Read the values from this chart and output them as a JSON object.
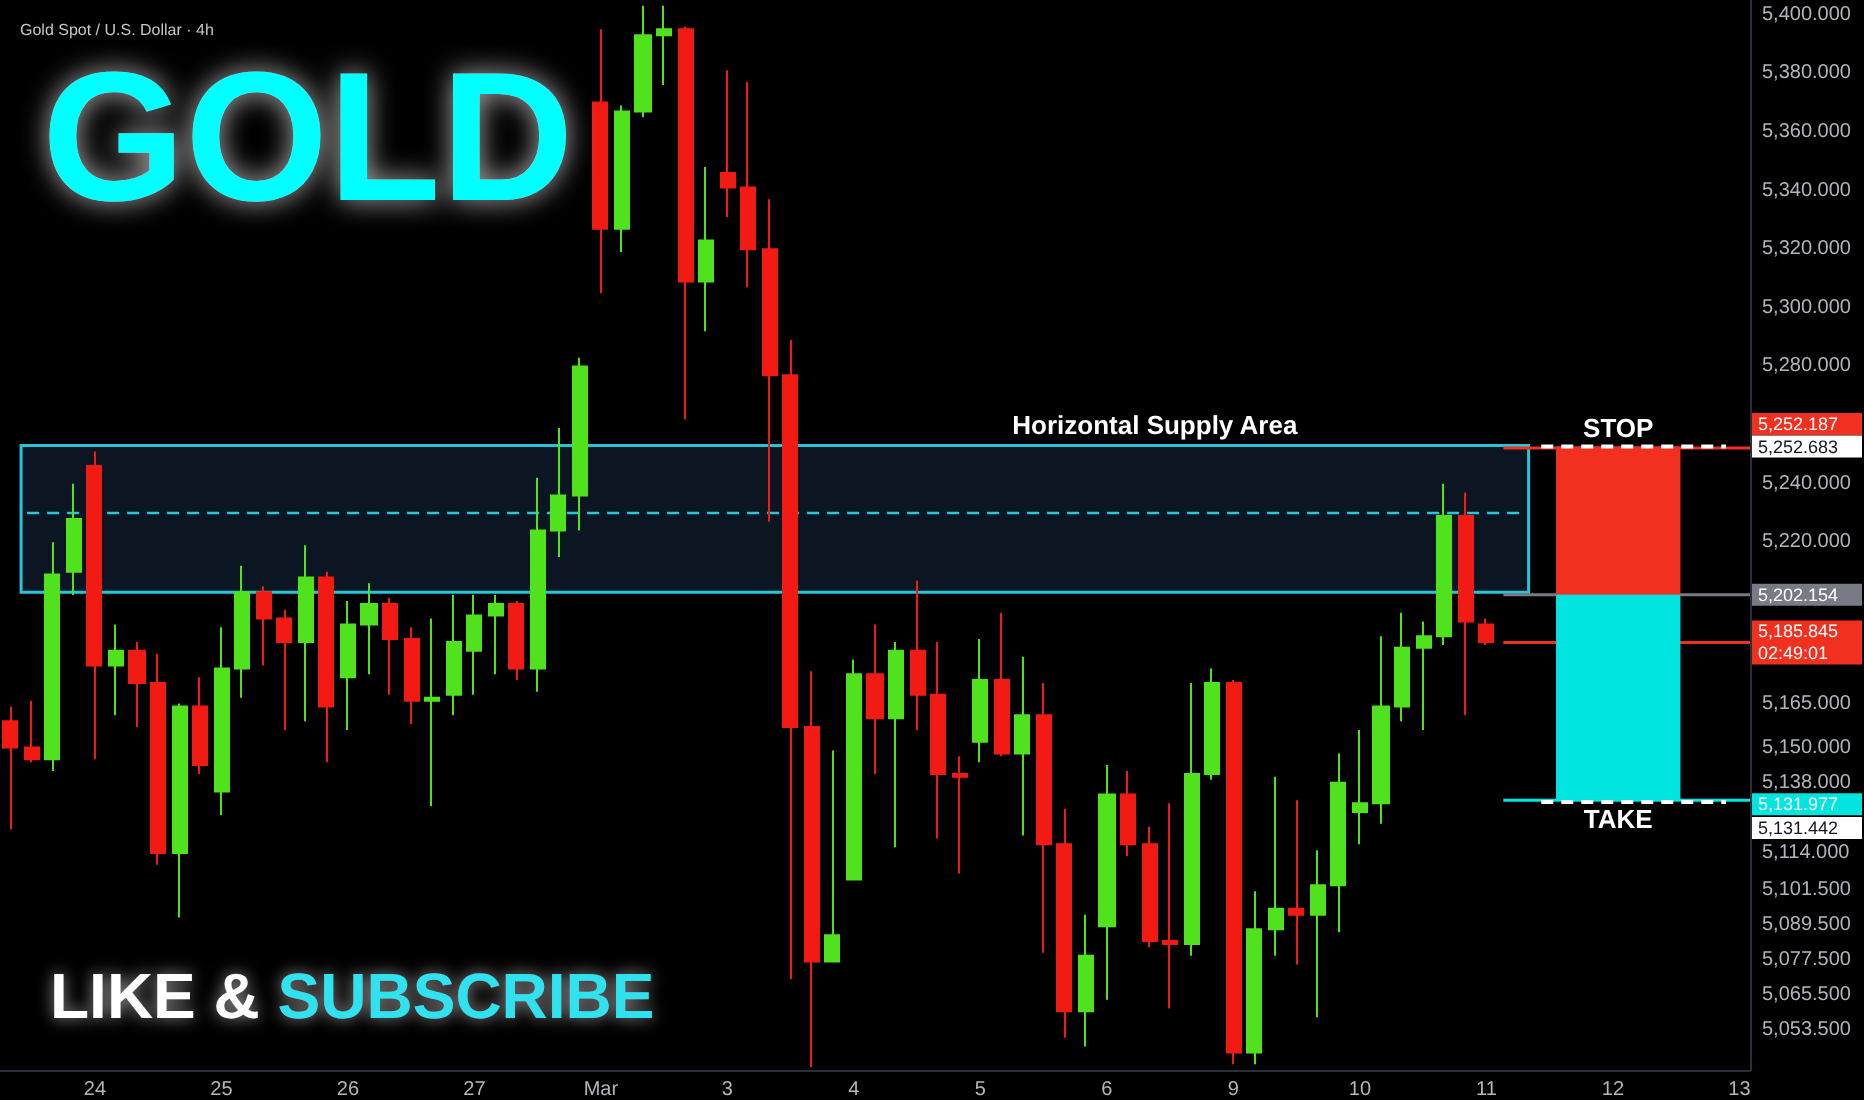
{
  "chart_data": {
    "type": "candlestick",
    "title": "GOLD",
    "subtitle": "Gold Spot / U.S. Dollar · 4h",
    "categories": [
      null,
      null,
      null,
      null,
      "24",
      null,
      null,
      null,
      null,
      null,
      "25",
      null,
      null,
      null,
      null,
      null,
      "26",
      null,
      null,
      null,
      null,
      null,
      "27",
      null,
      null,
      null,
      null,
      null,
      "Mar",
      null,
      null,
      null,
      null,
      null,
      "3",
      null,
      null,
      null,
      null,
      null,
      "4",
      null,
      null,
      null,
      null,
      null,
      "5",
      null,
      null,
      null,
      null,
      null,
      "6",
      null,
      null,
      null,
      null,
      null,
      "9",
      null,
      null,
      null,
      null,
      null,
      "10",
      null,
      null,
      null,
      null,
      null,
      "11",
      null,
      null,
      null,
      null,
      null,
      "12",
      null,
      null,
      null,
      null,
      null,
      "13"
    ],
    "ohlc": [
      [
        5159,
        5164,
        5122,
        5150
      ],
      [
        5150,
        5166,
        5145,
        5146
      ],
      [
        5146,
        5220,
        5142,
        5209
      ],
      [
        5210,
        5240,
        5202,
        5228
      ],
      [
        5246,
        5251,
        5146,
        5178
      ],
      [
        5178,
        5192,
        5161,
        5183
      ],
      [
        5183,
        5186,
        5157,
        5172
      ],
      [
        5172,
        5182,
        5110,
        5114
      ],
      [
        5114,
        5165,
        5092,
        5164
      ],
      [
        5164,
        5174,
        5141,
        5144
      ],
      [
        5135,
        5191,
        5127,
        5177
      ],
      [
        5177,
        5212,
        5167,
        5203
      ],
      [
        5203,
        5205,
        5178,
        5194
      ],
      [
        5194,
        5197,
        5156,
        5186
      ],
      [
        5186,
        5219,
        5159,
        5208
      ],
      [
        5208,
        5210,
        5145,
        5164
      ],
      [
        5174,
        5200,
        5156,
        5192
      ],
      [
        5192,
        5206,
        5175,
        5199
      ],
      [
        5199,
        5201,
        5168,
        5187
      ],
      [
        5187,
        5191,
        5158,
        5166
      ],
      [
        5166,
        5194,
        5130,
        5167
      ],
      [
        5168,
        5202,
        5161,
        5186
      ],
      [
        5183,
        5202,
        5168,
        5195
      ],
      [
        5195,
        5202,
        5175,
        5199
      ],
      [
        5199,
        5200,
        5173,
        5177
      ],
      [
        5177,
        5242,
        5169,
        5224
      ],
      [
        5224,
        5259,
        5215,
        5236
      ],
      [
        5236,
        5283,
        5224,
        5280
      ],
      [
        5370,
        5395,
        5305,
        5327
      ],
      [
        5327,
        5369,
        5319,
        5367
      ],
      [
        5367,
        5403,
        5365,
        5393
      ],
      [
        5393,
        5403,
        5376,
        5395
      ],
      [
        5395,
        5396,
        5262,
        5309
      ],
      [
        5309,
        5348,
        5292,
        5323
      ],
      [
        5346,
        5381,
        5331,
        5341
      ],
      [
        5341,
        5377,
        5307,
        5320
      ],
      [
        5320,
        5337,
        5227,
        5277
      ],
      [
        5277,
        5289,
        5071,
        5157
      ],
      [
        5157,
        5176,
        5041,
        5077
      ],
      [
        5077,
        5149,
        5077,
        5086
      ],
      [
        5105,
        5180,
        5105,
        5175
      ],
      [
        5175,
        5192,
        5141,
        5160
      ],
      [
        5160,
        5186,
        5116,
        5183
      ],
      [
        5183,
        5207,
        5156,
        5168
      ],
      [
        5168,
        5186,
        5119,
        5141
      ],
      [
        5141,
        5147,
        5107,
        5140
      ],
      [
        5152,
        5187,
        5145,
        5173
      ],
      [
        5173,
        5196,
        5147,
        5148
      ],
      [
        5148,
        5181,
        5120,
        5161
      ],
      [
        5161,
        5172,
        5080,
        5117
      ],
      [
        5117,
        5129,
        5051,
        5060
      ],
      [
        5060,
        5093,
        5048,
        5079
      ],
      [
        5089,
        5144,
        5064,
        5134
      ],
      [
        5134,
        5142,
        5113,
        5117
      ],
      [
        5117,
        5123,
        5082,
        5084
      ],
      [
        5084,
        5131,
        5061,
        5083
      ],
      [
        5083,
        5172,
        5079,
        5141
      ],
      [
        5141,
        5177,
        5139,
        5172
      ],
      [
        5172,
        5173,
        5042,
        5046
      ],
      [
        5046,
        5101,
        5042,
        5088
      ],
      [
        5088,
        5140,
        5079,
        5095
      ],
      [
        5095,
        5132,
        5076,
        5093
      ],
      [
        5093,
        5115,
        5058,
        5103
      ],
      [
        5103,
        5148,
        5087,
        5138
      ],
      [
        5128,
        5156,
        5117,
        5131
      ],
      [
        5131,
        5188,
        5124,
        5164
      ],
      [
        5164,
        5196,
        5159,
        5184
      ],
      [
        5184,
        5193,
        5156,
        5188
      ],
      [
        5188,
        5240,
        5185,
        5229
      ],
      [
        5229,
        5237,
        5161,
        5193
      ],
      [
        5192,
        5194,
        5185,
        5186
      ],
      null,
      null,
      null,
      null,
      null,
      null,
      null,
      null,
      null,
      null,
      null,
      null
    ],
    "ylim": [
      5040,
      5405
    ],
    "yticks": [
      {
        "value": 5400,
        "label": "5,400.000"
      },
      {
        "value": 5380,
        "label": "5,380.000"
      },
      {
        "value": 5360,
        "label": "5,360.000"
      },
      {
        "value": 5340,
        "label": "5,340.000"
      },
      {
        "value": 5320,
        "label": "5,320.000"
      },
      {
        "value": 5300,
        "label": "5,300.000"
      },
      {
        "value": 5280,
        "label": "5,280.000"
      },
      {
        "value": 5240,
        "label": "5,240.000"
      },
      {
        "value": 5220,
        "label": "5,220.000"
      },
      {
        "value": 5165,
        "label": "5,165.000"
      },
      {
        "value": 5150,
        "label": "5,150.000"
      },
      {
        "value": 5138,
        "label": "5,138.000"
      },
      {
        "value": 5114,
        "label": "5,114.000"
      },
      {
        "value": 5101.5,
        "label": "5,101.500"
      },
      {
        "value": 5089.5,
        "label": "5,089.500"
      },
      {
        "value": 5077.5,
        "label": "5,077.500"
      },
      {
        "value": 5065.5,
        "label": "5,065.500"
      },
      {
        "value": 5053.5,
        "label": "5,053.500"
      }
    ],
    "bands": [
      {
        "axis": "y",
        "from": 5203,
        "to": 5253,
        "label": "Horizontal Supply Area",
        "color": "#26c6da"
      },
      {
        "axis": "y",
        "from": 5202.154,
        "to": 5252.683,
        "label": "STOP",
        "color": "#f23020"
      },
      {
        "axis": "y",
        "from": 5131.977,
        "to": 5202.154,
        "label": "TAKE",
        "color": "#00e5e0"
      }
    ],
    "ref_lines": [
      {
        "axis": "y",
        "value": 5230,
        "color": "#26c6da",
        "line_style": "dashed"
      },
      {
        "axis": "y",
        "value": 5252.683,
        "label": "5,252.683",
        "color": "#ffffff",
        "line_style": "dashed"
      },
      {
        "axis": "y",
        "value": 5252.187,
        "label": "5,252.187",
        "color": "#f23020"
      },
      {
        "axis": "y",
        "value": 5202.154,
        "label": "5,202.154",
        "color": "#787b86"
      },
      {
        "axis": "y",
        "value": 5185.845,
        "label": "5,185.845\n02:49:01",
        "color": "#f23020"
      },
      {
        "axis": "y",
        "value": 5131.977,
        "label": "5,131.977",
        "color": "#00e5e0"
      },
      {
        "axis": "y",
        "value": 5131.442,
        "label": "5,131.442",
        "color": "#ffffff",
        "line_style": "dashed"
      }
    ],
    "annotations": [
      "LIKE & SUBSCRIBE"
    ]
  }
}
